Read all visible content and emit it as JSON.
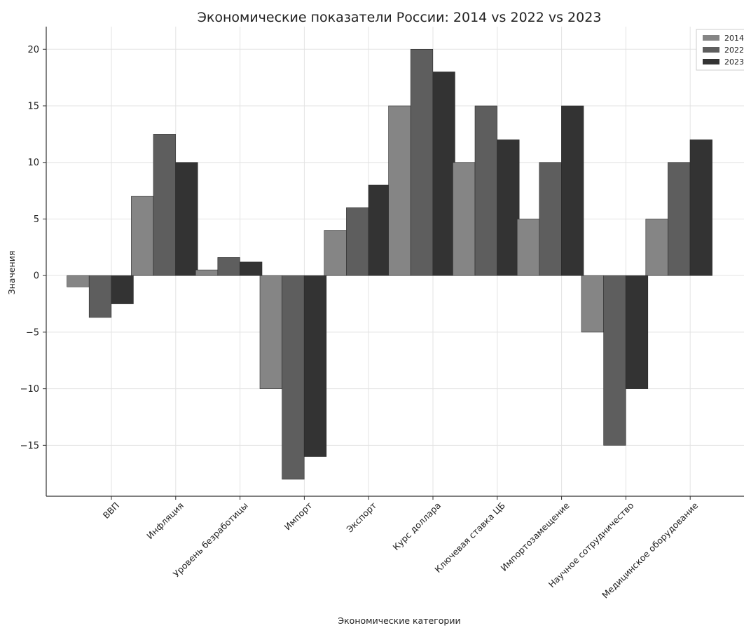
{
  "chart_data": {
    "type": "bar",
    "title": "Экономические показатели России: 2014 vs 2022 vs 2023",
    "xlabel": "Экономические категории",
    "ylabel": "Значения",
    "categories": [
      "ВВП",
      "Инфляция",
      "Уровень безработицы",
      "Импорт",
      "Экспорт",
      "Курс доллара",
      "Ключевая ставка ЦБ",
      "Импортозамещение",
      "Научное сотрудничество",
      "Медицинское оборудование"
    ],
    "series": [
      {
        "name": "2014",
        "color": "#858585",
        "values": [
          -1,
          7,
          0.5,
          -10,
          4,
          15,
          10,
          5,
          -5,
          5
        ]
      },
      {
        "name": "2022",
        "color": "#5e5e5e",
        "values": [
          -3.7,
          12.5,
          1.6,
          -18,
          6,
          20,
          15,
          10,
          -15,
          10
        ]
      },
      {
        "name": "2023",
        "color": "#333333",
        "values": [
          -2.5,
          10,
          1.2,
          -16,
          8,
          18,
          12,
          15,
          -10,
          12
        ]
      }
    ],
    "ylim": [
      -19.5,
      22
    ],
    "yticks": [
      -15,
      -10,
      -5,
      0,
      5,
      10,
      15,
      20
    ],
    "ytick_labels": [
      "−15",
      "−10",
      "−5",
      "0",
      "5",
      "10",
      "15",
      "20"
    ],
    "grid": true,
    "legend_position": "top-right"
  }
}
